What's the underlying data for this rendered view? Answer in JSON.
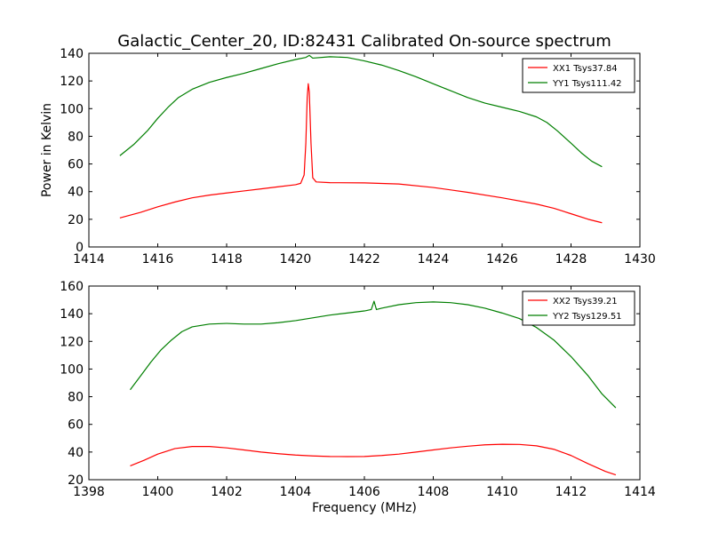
{
  "figure_title": "Galactic_Center_20, ID:82431 Calibrated On-source spectrum",
  "chart_data": [
    {
      "type": "line",
      "title": "",
      "xlabel": "",
      "ylabel": "Power in Kelvin",
      "xlim": [
        1414,
        1430
      ],
      "ylim": [
        0,
        140
      ],
      "xticks": [
        1414,
        1416,
        1418,
        1420,
        1422,
        1424,
        1426,
        1428,
        1430
      ],
      "yticks": [
        0,
        20,
        40,
        60,
        80,
        100,
        120,
        140
      ],
      "grid": false,
      "legend": "top-right",
      "series": [
        {
          "name": "XX1 Tsys37.84",
          "color": "#ff0000",
          "points": [
            [
              1414.9,
              21
            ],
            [
              1415.5,
              25
            ],
            [
              1416,
              29
            ],
            [
              1416.5,
              32.5
            ],
            [
              1417,
              35.5
            ],
            [
              1417.5,
              37.5
            ],
            [
              1418,
              39
            ],
            [
              1418.5,
              40.5
            ],
            [
              1419,
              42
            ],
            [
              1419.5,
              43.5
            ],
            [
              1420,
              45
            ],
            [
              1420.15,
              46
            ],
            [
              1420.25,
              52
            ],
            [
              1420.3,
              75
            ],
            [
              1420.34,
              108
            ],
            [
              1420.37,
              118
            ],
            [
              1420.4,
              112
            ],
            [
              1420.45,
              75
            ],
            [
              1420.5,
              50
            ],
            [
              1420.6,
              47
            ],
            [
              1421,
              46.5
            ],
            [
              1422,
              46.3
            ],
            [
              1423,
              45.5
            ],
            [
              1424,
              43
            ],
            [
              1425,
              39.5
            ],
            [
              1426,
              35.5
            ],
            [
              1427,
              31
            ],
            [
              1427.5,
              28
            ],
            [
              1428,
              24
            ],
            [
              1428.5,
              20
            ],
            [
              1428.9,
              17.5
            ]
          ]
        },
        {
          "name": "YY1 Tsys111.42",
          "color": "#007f00",
          "points": [
            [
              1414.9,
              66
            ],
            [
              1415.3,
              74
            ],
            [
              1415.7,
              84
            ],
            [
              1416,
              93
            ],
            [
              1416.3,
              101
            ],
            [
              1416.6,
              108
            ],
            [
              1417,
              114
            ],
            [
              1417.5,
              119
            ],
            [
              1418,
              122.5
            ],
            [
              1418.5,
              125.5
            ],
            [
              1419,
              129
            ],
            [
              1419.5,
              132.5
            ],
            [
              1420,
              135.5
            ],
            [
              1420.3,
              137
            ],
            [
              1420.4,
              138.5
            ],
            [
              1420.5,
              136.5
            ],
            [
              1421,
              137.5
            ],
            [
              1421.5,
              137
            ],
            [
              1422,
              134.5
            ],
            [
              1422.5,
              131.5
            ],
            [
              1423,
              127.5
            ],
            [
              1423.5,
              123
            ],
            [
              1424,
              118
            ],
            [
              1424.5,
              113
            ],
            [
              1425,
              108
            ],
            [
              1425.5,
              104
            ],
            [
              1426,
              101
            ],
            [
              1426.5,
              98
            ],
            [
              1427,
              94
            ],
            [
              1427.3,
              90
            ],
            [
              1427.6,
              84
            ],
            [
              1428,
              75
            ],
            [
              1428.3,
              68
            ],
            [
              1428.6,
              62
            ],
            [
              1428.9,
              58
            ]
          ]
        }
      ]
    },
    {
      "type": "line",
      "title": "",
      "xlabel": "Frequency (MHz)",
      "ylabel": "",
      "xlim": [
        1398,
        1414
      ],
      "ylim": [
        20,
        160
      ],
      "xticks": [
        1398,
        1400,
        1402,
        1404,
        1406,
        1408,
        1410,
        1412,
        1414
      ],
      "yticks": [
        20,
        40,
        60,
        80,
        100,
        120,
        140,
        160
      ],
      "grid": false,
      "legend": "top-right",
      "series": [
        {
          "name": "XX2 Tsys39.21",
          "color": "#ff0000",
          "points": [
            [
              1399.2,
              30
            ],
            [
              1399.6,
              34
            ],
            [
              1400,
              38.5
            ],
            [
              1400.5,
              42.5
            ],
            [
              1401,
              44
            ],
            [
              1401.5,
              44
            ],
            [
              1402,
              43
            ],
            [
              1402.5,
              41.5
            ],
            [
              1403,
              40
            ],
            [
              1403.5,
              38.8
            ],
            [
              1404,
              37.8
            ],
            [
              1404.5,
              37.2
            ],
            [
              1405,
              36.8
            ],
            [
              1405.5,
              36.7
            ],
            [
              1406,
              36.8
            ],
            [
              1406.5,
              37.5
            ],
            [
              1407,
              38.5
            ],
            [
              1407.5,
              40
            ],
            [
              1408,
              41.5
            ],
            [
              1408.5,
              43
            ],
            [
              1409,
              44.2
            ],
            [
              1409.5,
              45.2
            ],
            [
              1410,
              45.6
            ],
            [
              1410.5,
              45.5
            ],
            [
              1411,
              44.5
            ],
            [
              1411.5,
              42
            ],
            [
              1412,
              37.5
            ],
            [
              1412.5,
              31.5
            ],
            [
              1413,
              26
            ],
            [
              1413.3,
              23.5
            ]
          ]
        },
        {
          "name": "YY2 Tsys129.51",
          "color": "#007f00",
          "points": [
            [
              1399.2,
              85
            ],
            [
              1399.5,
              95
            ],
            [
              1399.8,
              105
            ],
            [
              1400.1,
              114
            ],
            [
              1400.4,
              121
            ],
            [
              1400.7,
              127
            ],
            [
              1401,
              130.5
            ],
            [
              1401.5,
              132.5
            ],
            [
              1402,
              133
            ],
            [
              1402.5,
              132.5
            ],
            [
              1403,
              132.5
            ],
            [
              1403.5,
              133.5
            ],
            [
              1404,
              135
            ],
            [
              1404.5,
              137
            ],
            [
              1405,
              139
            ],
            [
              1405.5,
              140.5
            ],
            [
              1406,
              142
            ],
            [
              1406.2,
              143
            ],
            [
              1406.28,
              149
            ],
            [
              1406.35,
              143
            ],
            [
              1406.5,
              144
            ],
            [
              1407,
              146.5
            ],
            [
              1407.5,
              148
            ],
            [
              1408,
              148.5
            ],
            [
              1408.5,
              148
            ],
            [
              1409,
              146.5
            ],
            [
              1409.5,
              144
            ],
            [
              1410,
              140.5
            ],
            [
              1410.5,
              136.5
            ],
            [
              1411,
              130
            ],
            [
              1411.5,
              121
            ],
            [
              1412,
              109
            ],
            [
              1412.5,
              95
            ],
            [
              1412.9,
              82
            ],
            [
              1413.3,
              72
            ]
          ]
        }
      ]
    }
  ]
}
